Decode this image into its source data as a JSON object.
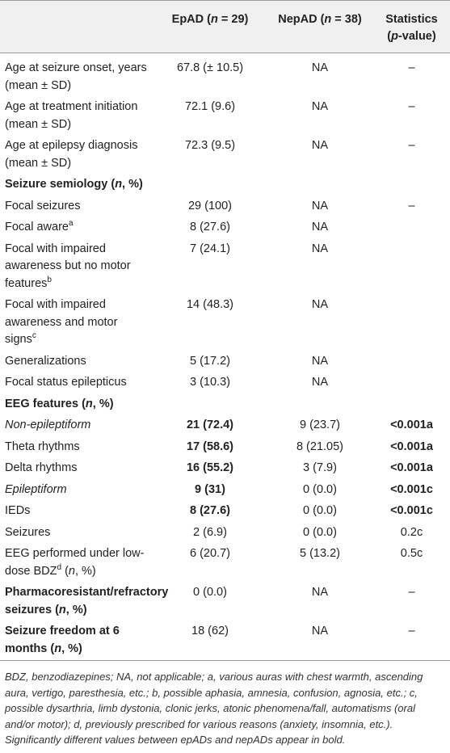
{
  "table": {
    "header": [
      [
        {
          "text": "EpAD ("
        },
        {
          "text": "n",
          "italic": true
        },
        {
          "text": " = 29)"
        }
      ],
      [
        {
          "text": "NepAD ("
        },
        {
          "text": "n",
          "italic": true
        },
        {
          "text": " = 38)"
        }
      ],
      [
        {
          "text": "Statistics ("
        },
        {
          "text": "p",
          "italic": true
        },
        {
          "text": "-value)"
        }
      ]
    ],
    "rows": [
      {
        "cells": [
          [
            {
              "text": "Age at seizure onset, years (mean ± SD)"
            }
          ],
          [
            {
              "text": "67.8 (± 10.5)"
            }
          ],
          [
            {
              "text": "NA"
            }
          ],
          [
            {
              "text": "–"
            }
          ]
        ]
      },
      {
        "cells": [
          [
            {
              "text": "Age at treatment initiation (mean ± SD)"
            }
          ],
          [
            {
              "text": "72.1 (9.6)"
            }
          ],
          [
            {
              "text": "NA"
            }
          ],
          [
            {
              "text": "–"
            }
          ]
        ]
      },
      {
        "cells": [
          [
            {
              "text": "Age at epilepsy diagnosis (mean ± SD)"
            }
          ],
          [
            {
              "text": "72.3 (9.5)"
            }
          ],
          [
            {
              "text": "NA"
            }
          ],
          [
            {
              "text": "–"
            }
          ]
        ]
      },
      {
        "heading": [
          {
            "text": "Seizure semiology (",
            "bold": true
          },
          {
            "text": "n",
            "bold": true,
            "italic": true
          },
          {
            "text": ", %)",
            "bold": true
          }
        ]
      },
      {
        "cells": [
          [
            {
              "text": "Focal seizures"
            }
          ],
          [
            {
              "text": "29 (100)"
            }
          ],
          [
            {
              "text": "NA"
            }
          ],
          [
            {
              "text": "–"
            }
          ]
        ]
      },
      {
        "cells": [
          [
            {
              "text": "Focal aware"
            },
            {
              "text": "a",
              "sup": true
            }
          ],
          [
            {
              "text": "8 (27.6)"
            }
          ],
          [
            {
              "text": "NA"
            }
          ]
        ]
      },
      {
        "cells": [
          [
            {
              "text": "Focal with impaired awareness but no motor features"
            },
            {
              "text": "b",
              "sup": true
            }
          ],
          [
            {
              "text": "7 (24.1)"
            }
          ],
          [
            {
              "text": "NA"
            }
          ]
        ]
      },
      {
        "cells": [
          [
            {
              "text": "Focal with impaired awareness and motor signs"
            },
            {
              "text": "c",
              "sup": true
            }
          ],
          [
            {
              "text": "14 (48.3)"
            }
          ],
          [
            {
              "text": "NA"
            }
          ]
        ]
      },
      {
        "cells": [
          [
            {
              "text": "Generalizations"
            }
          ],
          [
            {
              "text": "5 (17.2)"
            }
          ],
          [
            {
              "text": "NA"
            }
          ]
        ]
      },
      {
        "cells": [
          [
            {
              "text": "Focal status epilepticus"
            }
          ],
          [
            {
              "text": "3 (10.3)"
            }
          ],
          [
            {
              "text": "NA"
            }
          ]
        ]
      },
      {
        "heading": [
          {
            "text": "EEG features (",
            "bold": true
          },
          {
            "text": "n",
            "bold": true,
            "italic": true
          },
          {
            "text": ", %)",
            "bold": true
          }
        ]
      },
      {
        "cells": [
          [
            {
              "text": "Non-epileptiform",
              "italic": true
            }
          ],
          [
            {
              "text": "21 (72.4)",
              "bold": true
            }
          ],
          [
            {
              "text": "9 (23.7)"
            }
          ],
          [
            {
              "text": "<0.001a",
              "bold": true
            }
          ]
        ]
      },
      {
        "cells": [
          [
            {
              "text": "Theta rhythms"
            }
          ],
          [
            {
              "text": "17 (58.6)",
              "bold": true
            }
          ],
          [
            {
              "text": "8 (21.05)"
            }
          ],
          [
            {
              "text": "<0.001a",
              "bold": true
            }
          ]
        ]
      },
      {
        "cells": [
          [
            {
              "text": "Delta rhythms"
            }
          ],
          [
            {
              "text": "16 (55.2)",
              "bold": true
            }
          ],
          [
            {
              "text": "3 (7.9)"
            }
          ],
          [
            {
              "text": "<0.001a",
              "bold": true
            }
          ]
        ]
      },
      {
        "cells": [
          [
            {
              "text": "Epileptiform",
              "italic": true
            }
          ],
          [
            {
              "text": "9 (31)",
              "bold": true
            }
          ],
          [
            {
              "text": "0 (0.0)"
            }
          ],
          [
            {
              "text": "<0.001c",
              "bold": true
            }
          ]
        ]
      },
      {
        "cells": [
          [
            {
              "text": "IEDs"
            }
          ],
          [
            {
              "text": "8 (27.6)",
              "bold": true
            }
          ],
          [
            {
              "text": "0 (0.0)"
            }
          ],
          [
            {
              "text": "<0.001c",
              "bold": true
            }
          ]
        ]
      },
      {
        "cells": [
          [
            {
              "text": "Seizures"
            }
          ],
          [
            {
              "text": "2 (6.9)"
            }
          ],
          [
            {
              "text": "0 (0.0)"
            }
          ],
          [
            {
              "text": "0.2c"
            }
          ]
        ]
      },
      {
        "cells": [
          [
            {
              "text": "EEG performed under low-dose BDZ"
            },
            {
              "text": "d",
              "sup": true
            },
            {
              "text": " ("
            },
            {
              "text": "n",
              "italic": true
            },
            {
              "text": ", %)"
            }
          ],
          [
            {
              "text": "6 (20.7)"
            }
          ],
          [
            {
              "text": "5 (13.2)"
            }
          ],
          [
            {
              "text": "0.5c"
            }
          ]
        ]
      },
      {
        "cells": [
          [
            {
              "text": "Pharmacoresistant/refractory seizures (",
              "bold": true
            },
            {
              "text": "n",
              "bold": true,
              "italic": true
            },
            {
              "text": ", %)",
              "bold": true
            }
          ],
          [
            {
              "text": "0 (0.0)"
            }
          ],
          [
            {
              "text": "NA"
            }
          ],
          [
            {
              "text": "–"
            }
          ]
        ]
      },
      {
        "cells": [
          [
            {
              "text": "Seizure freedom at 6 months (",
              "bold": true
            },
            {
              "text": "n",
              "bold": true,
              "italic": true
            },
            {
              "text": ", %)",
              "bold": true
            }
          ],
          [
            {
              "text": "18 (62)"
            }
          ],
          [
            {
              "text": "NA"
            }
          ],
          [
            {
              "text": "–"
            }
          ]
        ]
      }
    ],
    "footnote": "BDZ, benzodiazepines; NA, not applicable; a, various auras with chest warmth, ascending aura, vertigo, paresthesia, etc.; b, possible aphasia, amnesia, confusion, agnosia, etc.; c, possible dysarthria, limb dystonia, clonic jerks, atonic phenomena/fall, automatisms (oral and/or motor); d, previously prescribed for various reasons (anxiety, insomnia, etc.). Significantly different values between epADs and nepADs appear in bold."
  }
}
